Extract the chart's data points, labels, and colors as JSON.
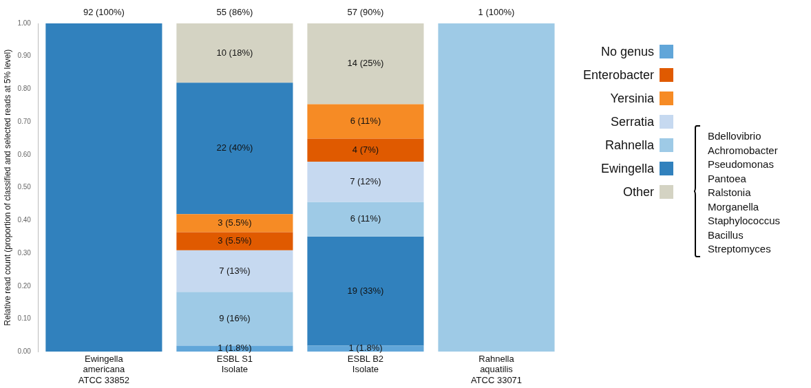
{
  "chart_data": {
    "type": "bar",
    "ylabel": "Relative read count (proportion of classified and selected reads at 5% level)",
    "categories": [
      "Ewingella\namericana\nATCC 33852",
      "ESBL S1\nIsolate",
      "ESBL B2\nIsolate",
      "Rahnella\naquatilis\nATCC 33071"
    ],
    "ylim": [
      0,
      1
    ],
    "yticks": [
      {
        "value": 0,
        "label": "0.00"
      },
      {
        "value": 0.1,
        "label": "0.10"
      },
      {
        "value": 0.2,
        "label": "0.20"
      },
      {
        "value": 0.3,
        "label": "0.30"
      },
      {
        "value": 0.4,
        "label": "0.40"
      },
      {
        "value": 0.5,
        "label": "0.50"
      },
      {
        "value": 0.6,
        "label": "0.60"
      },
      {
        "value": 0.7,
        "label": "0.70"
      },
      {
        "value": 0.8,
        "label": "0.80"
      },
      {
        "value": 0.9,
        "label": "0.90"
      },
      {
        "value": 1,
        "label": "1.00"
      }
    ],
    "series": [
      {
        "name": "No genus",
        "color": "#61a6d9",
        "values": [
          null,
          0.018,
          0.018,
          null
        ],
        "base": [
          null,
          0,
          0,
          null
        ],
        "value_labels": [
          null,
          "1 (1.8%)",
          "1 (1.8%)",
          null
        ]
      },
      {
        "name": "Enterobacter",
        "color": "#e05a00",
        "values": [
          null,
          0.055,
          0.07,
          null
        ],
        "base": [
          null,
          0.309,
          0.579,
          null
        ],
        "value_labels": [
          null,
          "3 (5.5%)",
          "4 (7%)",
          null
        ]
      },
      {
        "name": "Yersinia",
        "color": "#f68b25",
        "values": [
          null,
          0.055,
          0.105,
          null
        ],
        "base": [
          null,
          0.364,
          0.649,
          null
        ],
        "value_labels": [
          null,
          "3 (5.5%)",
          "6 (11%)",
          null
        ]
      },
      {
        "name": "Serratia",
        "color": "#c6d9f0",
        "values": [
          null,
          0.127,
          0.123,
          null
        ],
        "base": [
          null,
          0.182,
          0.456,
          null
        ],
        "value_labels": [
          null,
          "7 (13%)",
          "7 (12%)",
          null
        ]
      },
      {
        "name": "Rahnella",
        "color": "#9ecae6",
        "values": [
          null,
          0.164,
          0.105,
          1
        ],
        "base": [
          null,
          0.018,
          0.351,
          0
        ],
        "value_labels": [
          null,
          "9 (16%)",
          "6 (11%)",
          null
        ]
      },
      {
        "name": "Ewingella",
        "color": "#3181bd",
        "values": [
          1,
          0.4,
          0.333,
          null
        ],
        "base": [
          0,
          0.419,
          0.018,
          null
        ],
        "value_labels": [
          null,
          "22 (40%)",
          "19 (33%)",
          null
        ]
      },
      {
        "name": "Other",
        "color": "#d4d3c3",
        "values": [
          null,
          0.181,
          0.246,
          null
        ],
        "base": [
          null,
          0.819,
          0.754,
          null
        ],
        "value_labels": [
          null,
          "10 (18%)",
          "14 (25%)",
          null
        ]
      }
    ],
    "totals": [
      "92 (100%)",
      "55 (86%)",
      "57 (90%)",
      "1 (100%)"
    ],
    "legend": "right",
    "annotations": [
      "Bdellovibrio",
      "Achromobacter",
      "Pseudomonas",
      "Pantoea",
      "Ralstonia",
      "Morganella",
      "Staphylococcus",
      "Bacillus",
      "Streptomyces"
    ]
  }
}
